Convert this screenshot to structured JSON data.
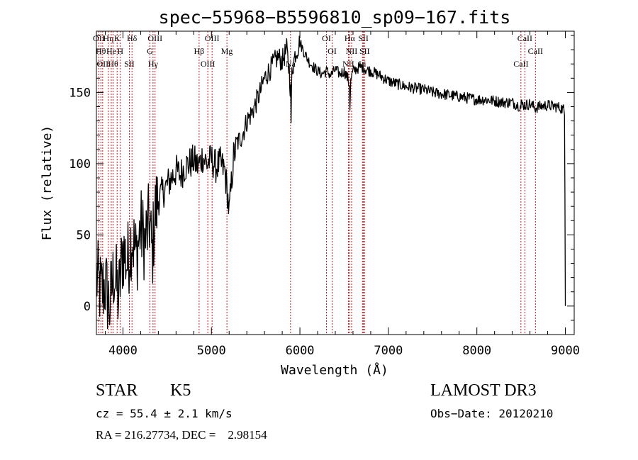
{
  "chart_data": {
    "type": "line",
    "title": "spec−55968−B5596810_sp09−167.fits",
    "xlabel": "Wavelength (Å)",
    "ylabel": "Flux (relative)",
    "xlim": [
      3700,
      9100
    ],
    "ylim": [
      -20,
      193
    ],
    "xticks": [
      4000,
      5000,
      6000,
      7000,
      8000,
      9000
    ],
    "yticks": [
      0,
      50,
      100,
      150
    ],
    "grid": false,
    "series": [
      {
        "values": {
          "x": [
            3700,
            3750,
            3800,
            3850,
            3900,
            3950,
            4000,
            4050,
            4100,
            4150,
            4200,
            4250,
            4300,
            4330,
            4360,
            4400,
            4450,
            4500,
            4550,
            4600,
            4650,
            4700,
            4750,
            4800,
            4850,
            4900,
            4950,
            5000,
            5050,
            5100,
            5150,
            5180,
            5200,
            5250,
            5300,
            5350,
            5400,
            5450,
            5500,
            5550,
            5600,
            5650,
            5700,
            5750,
            5800,
            5850,
            5880,
            5895,
            5900,
            5910,
            5950,
            5980,
            6000,
            6050,
            6100,
            6150,
            6200,
            6250,
            6300,
            6350,
            6400,
            6450,
            6500,
            6540,
            6560,
            6565,
            6575,
            6600,
            6650,
            6700,
            6750,
            6800,
            6900,
            7000,
            7100,
            7200,
            7300,
            7400,
            7500,
            7600,
            7700,
            7800,
            7900,
            8000,
            8100,
            8200,
            8300,
            8400,
            8498,
            8500,
            8542,
            8600,
            8662,
            8700,
            8800,
            8900,
            8950,
            8980,
            8990,
            8995,
            9000
          ],
          "y": [
            20,
            10,
            15,
            0,
            25,
            5,
            40,
            30,
            50,
            35,
            55,
            45,
            60,
            35,
            65,
            75,
            80,
            85,
            90,
            95,
            92,
            98,
            100,
            102,
            98,
            105,
            100,
            103,
            98,
            100,
            95,
            80,
            65,
            105,
            115,
            120,
            130,
            135,
            142,
            150,
            160,
            165,
            170,
            175,
            172,
            180,
            165,
            150,
            130,
            165,
            178,
            182,
            185,
            178,
            172,
            168,
            165,
            163,
            165,
            162,
            166,
            163,
            165,
            160,
            155,
            140,
            158,
            165,
            167,
            168,
            166,
            165,
            162,
            158,
            156,
            154,
            153,
            152,
            150,
            149,
            148,
            147,
            146,
            145,
            145,
            144,
            143,
            143,
            140,
            142,
            141,
            142,
            139,
            140,
            141,
            140,
            139,
            138,
            135,
            80,
            0
          ]
        }
      }
    ],
    "line_markers": [
      {
        "x": 3727,
        "label": "OII"
      },
      {
        "x": 3750,
        "label": "Hθ"
      },
      {
        "x": 3771,
        "label": "OII"
      },
      {
        "x": 3835,
        "label": "Hη"
      },
      {
        "x": 3868,
        "label": "He"
      },
      {
        "x": 3889,
        "label": "Hθ"
      },
      {
        "x": 3934,
        "label": "K"
      },
      {
        "x": 3970,
        "label": "H"
      },
      {
        "x": 4072,
        "label": "SII"
      },
      {
        "x": 4102,
        "label": "Hδ"
      },
      {
        "x": 4305,
        "label": "G"
      },
      {
        "x": 4340,
        "label": "Hγ"
      },
      {
        "x": 4363,
        "label": "OIII"
      },
      {
        "x": 4861,
        "label": "Hβ"
      },
      {
        "x": 4959,
        "label": "OIII"
      },
      {
        "x": 5007,
        "label": "OIII"
      },
      {
        "x": 5175,
        "label": "Mg"
      },
      {
        "x": 5894,
        "label": "Na"
      },
      {
        "x": 6300,
        "label": "OI"
      },
      {
        "x": 6364,
        "label": "OI"
      },
      {
        "x": 6548,
        "label": "NII"
      },
      {
        "x": 6563,
        "label": "Hα"
      },
      {
        "x": 6584,
        "label": "NII"
      },
      {
        "x": 6707,
        "label": "Li"
      },
      {
        "x": 6717,
        "label": "SII"
      },
      {
        "x": 6731,
        "label": "SII"
      },
      {
        "x": 8498,
        "label": "CaII"
      },
      {
        "x": 8542,
        "label": "CaII"
      },
      {
        "x": 8662,
        "label": "CaII"
      }
    ]
  },
  "info": {
    "class": "STAR",
    "subclass": "K5",
    "survey": "LAMOST DR3",
    "cz": "cz = 55.4 ± 2.1 km/s",
    "obs_date": "Obs−Date: 20120210",
    "radec": "RA = 216.27734, DEC =    2.98154"
  }
}
